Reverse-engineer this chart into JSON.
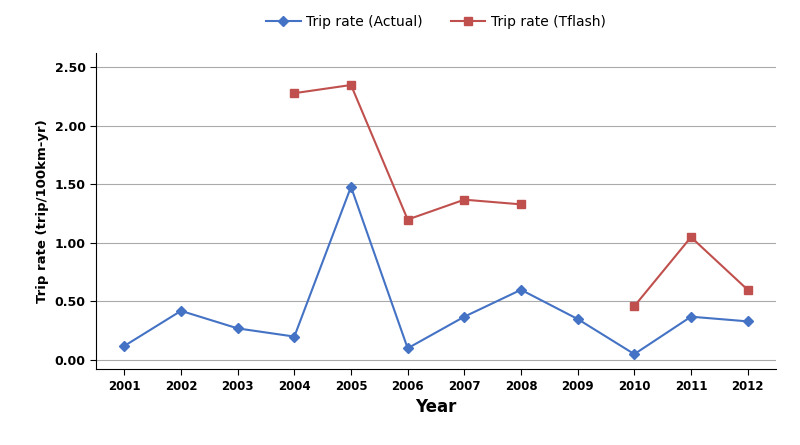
{
  "years": [
    2001,
    2002,
    2003,
    2004,
    2005,
    2006,
    2007,
    2008,
    2009,
    2010,
    2011,
    2012
  ],
  "actual": [
    0.12,
    0.42,
    0.27,
    0.2,
    1.48,
    0.1,
    0.37,
    0.6,
    0.35,
    0.05,
    0.37,
    0.33
  ],
  "tflash": [
    null,
    null,
    null,
    2.28,
    2.35,
    1.2,
    1.37,
    1.33,
    null,
    0.46,
    1.05,
    0.6
  ],
  "actual_color": "#4472C4",
  "tflash_color": "#C0504D",
  "actual_label": "Trip rate (Actual)",
  "tflash_label": "Trip rate (Tflash)",
  "xlabel": "Year",
  "ylabel": "Trip rate (trip/100km-yr)",
  "ylim": [
    -0.08,
    2.62
  ],
  "yticks": [
    0.0,
    0.5,
    1.0,
    1.5,
    2.0,
    2.5
  ],
  "bg_color": "#ffffff",
  "grid_color": "#aaaaaa",
  "figsize": [
    8.0,
    4.45
  ],
  "dpi": 100
}
